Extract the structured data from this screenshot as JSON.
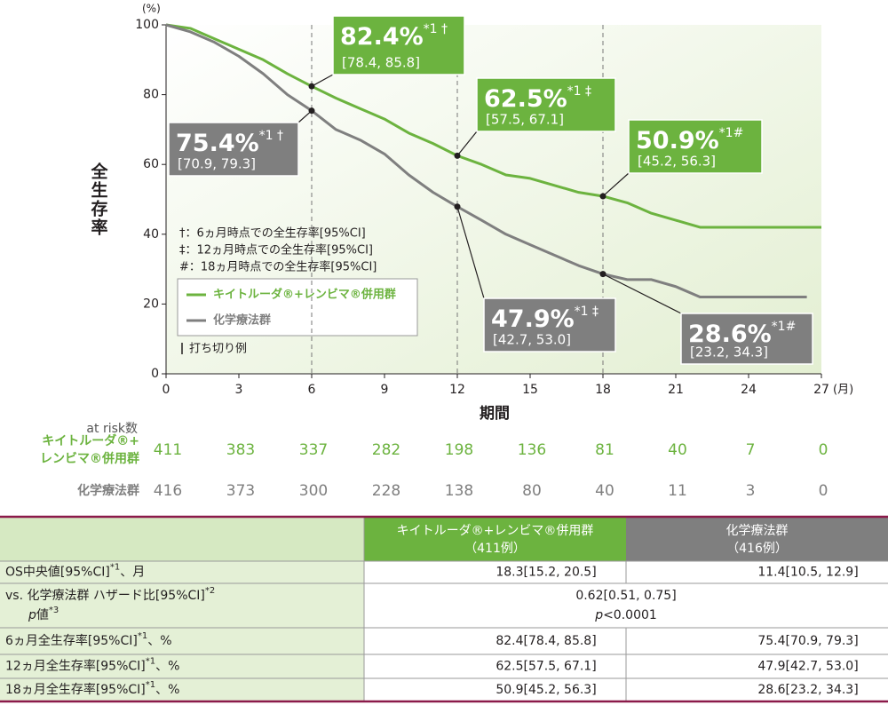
{
  "chart_data": {
    "type": "line",
    "y_unit": "(%)",
    "ylabel": "全生存率",
    "xlabel": "期間",
    "x_unit": "(月)",
    "xlim": [
      0,
      27
    ],
    "xticks": [
      0,
      3,
      6,
      9,
      12,
      15,
      18,
      21,
      24,
      27
    ],
    "ylim": [
      0,
      100
    ],
    "yticks": [
      0,
      20,
      40,
      60,
      80,
      100
    ],
    "series": [
      {
        "name": "キイトルーダ®+レンビマ®併用群",
        "color": "#6cb33f",
        "x": [
          0,
          1,
          2,
          3,
          4,
          5,
          6,
          7,
          8,
          9,
          10,
          11,
          12,
          13,
          14,
          15,
          16,
          17,
          18,
          19,
          20,
          21,
          22,
          23,
          24,
          25,
          26,
          27
        ],
        "values": [
          100,
          99,
          96,
          93,
          90,
          86,
          82.4,
          79,
          76,
          73,
          69,
          66,
          62.5,
          60,
          57,
          56,
          54,
          52,
          50.9,
          49,
          46,
          44,
          42,
          42,
          42,
          42,
          42,
          42
        ]
      },
      {
        "name": "化学療法群",
        "color": "#7f7f7f",
        "x": [
          0,
          1,
          2,
          3,
          4,
          5,
          6,
          7,
          8,
          9,
          10,
          11,
          12,
          13,
          14,
          15,
          16,
          17,
          18,
          19,
          20,
          21,
          22,
          23,
          24,
          25,
          26,
          26.4
        ],
        "values": [
          100,
          98,
          95,
          91,
          86,
          80,
          75.4,
          70,
          67,
          63,
          57,
          52,
          47.9,
          44,
          40,
          37,
          34,
          31,
          28.6,
          27,
          27,
          25,
          22,
          22,
          22,
          22,
          22,
          22
        ]
      }
    ],
    "censor_legend": "打ち切り例",
    "footnotes": [
      "†：6ヵ月時点での全生存率[95%CI]",
      "‡：12ヵ月時点での全生存率[95%CI]",
      "#：18ヵ月時点での全生存率[95%CI]"
    ],
    "annotations": [
      {
        "x": 6,
        "value": 82.4,
        "label": "82.4%",
        "sup": "*1 †",
        "ci": "[78.4, 85.8]",
        "color": "#6cb33f"
      },
      {
        "x": 6,
        "value": 75.4,
        "label": "75.4%",
        "sup": "*1 †",
        "ci": "[70.9, 79.3]",
        "color": "#7f7f7f"
      },
      {
        "x": 12,
        "value": 62.5,
        "label": "62.5%",
        "sup": "*1 ‡",
        "ci": "[57.5, 67.1]",
        "color": "#6cb33f"
      },
      {
        "x": 12,
        "value": 47.9,
        "label": "47.9%",
        "sup": "*1 ‡",
        "ci": "[42.7, 53.0]",
        "color": "#7f7f7f"
      },
      {
        "x": 18,
        "value": 50.9,
        "label": "50.9%",
        "sup": "*1#",
        "ci": "[45.2, 56.3]",
        "color": "#6cb33f"
      },
      {
        "x": 18,
        "value": 28.6,
        "label": "28.6%",
        "sup": "*1#",
        "ci": "[23.2, 34.3]",
        "color": "#7f7f7f"
      }
    ]
  },
  "at_risk": {
    "title": "at risk数",
    "rows": [
      {
        "name_lines": [
          "キイトルーダ®+",
          "レンビマ®併用群"
        ],
        "color": "#6cb33f",
        "values": [
          411,
          383,
          337,
          282,
          198,
          136,
          81,
          40,
          7,
          0
        ]
      },
      {
        "name_lines": [
          "化学療法群"
        ],
        "color": "#7f7f7f",
        "values": [
          416,
          373,
          300,
          228,
          138,
          80,
          40,
          11,
          3,
          0
        ]
      }
    ]
  },
  "table": {
    "columns": [
      {
        "name": "キイトルーダ®+レンビマ®併用群",
        "n": "（411例）"
      },
      {
        "name": "化学療法群",
        "n": "（416例）"
      }
    ],
    "rows": [
      {
        "label": "OS中央値[95%CI]",
        "sup": "*1",
        "suffix": "、月",
        "cells": [
          "18.3[15.2, 20.5]",
          "11.4[10.5, 12.9]"
        ]
      },
      {
        "label": "vs. 化学療法群 ハザード比[95%CI]",
        "sup": "*2",
        "label2_italic": "p",
        "label2": "値",
        "sup2": "*3",
        "merged": "0.62[0.51, 0.75]",
        "merged2_italic": "p",
        "merged2": "<0.0001"
      },
      {
        "label": "6ヵ月全生存率[95%CI]",
        "sup": "*1",
        "suffix": "、%",
        "cells": [
          "82.4[78.4, 85.8]",
          "75.4[70.9, 79.3]"
        ]
      },
      {
        "label": "12ヵ月全生存率[95%CI]",
        "sup": "*1",
        "suffix": "、%",
        "cells": [
          "62.5[57.5, 67.1]",
          "47.9[42.7, 53.0]"
        ]
      },
      {
        "label": "18ヵ月全生存率[95%CI]",
        "sup": "*1",
        "suffix": "、%",
        "cells": [
          "50.9[45.2, 56.3]",
          "28.6[23.2, 34.3]"
        ]
      }
    ]
  }
}
